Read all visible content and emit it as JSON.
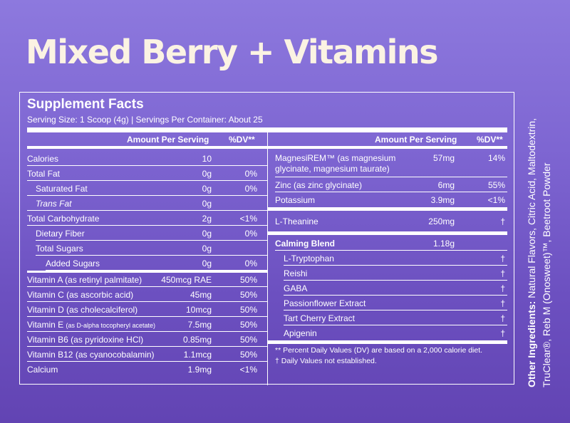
{
  "title": "Mixed Berry + Vitamins",
  "facts": {
    "heading": "Supplement Facts",
    "serving": "Serving Size: 1 Scoop (4g) | Servings Per Container: About 25",
    "col_amount": "Amount Per Serving",
    "col_dv": "%DV**"
  },
  "left_rows": [
    {
      "name": "Calories",
      "amt": "10",
      "dv": ""
    },
    {
      "name": "Total Fat",
      "amt": "0g",
      "dv": "0%"
    },
    {
      "name": "Saturated Fat",
      "amt": "0g",
      "dv": "0%"
    },
    {
      "name": "Trans Fat",
      "amt": "0g",
      "dv": ""
    },
    {
      "name": "Total Carbohydrate",
      "amt": "2g",
      "dv": "<1%"
    },
    {
      "name": "Dietary Fiber",
      "amt": "0g",
      "dv": "0%"
    },
    {
      "name": "Total Sugars",
      "amt": "0g",
      "dv": ""
    },
    {
      "name": "Added Sugars",
      "amt": "0g",
      "dv": "0%"
    },
    {
      "name": "Vitamin A (as retinyl palmitate)",
      "amt": "450mcg RAE",
      "dv": "50%"
    },
    {
      "name": "Vitamin C (as ascorbic acid)",
      "amt": "45mg",
      "dv": "50%"
    },
    {
      "name": "Vitamin D (as cholecalciferol)",
      "amt": "10mcg",
      "dv": "50%"
    },
    {
      "name": "Vitamin E",
      "sub": "(as D-alpha tocopheryl acetate)",
      "amt": "7.5mg",
      "dv": "50%"
    },
    {
      "name": "Vitamin B6 (as pyridoxine HCl)",
      "amt": "0.85mg",
      "dv": "50%"
    },
    {
      "name": "Vitamin B12 (as cyanocobalamin)",
      "amt": "1.1mcg",
      "dv": "50%"
    },
    {
      "name": "Calcium",
      "amt": "1.9mg",
      "dv": "<1%"
    }
  ],
  "right_rows": [
    {
      "name": "MagnesiREM™ (as magnesium",
      "name2": "glycinate, magnesium taurate)",
      "amt": "57mg",
      "dv": "14%"
    },
    {
      "name": "Zinc (as zinc glycinate)",
      "amt": "6mg",
      "dv": "55%"
    },
    {
      "name": "Potassium",
      "amt": "3.9mg",
      "dv": "<1%"
    },
    {
      "name": "L-Theanine",
      "amt": "250mg",
      "dv": "†"
    },
    {
      "name": "Calming Blend",
      "amt": "1.18g",
      "dv": ""
    },
    {
      "name": "L-Tryptophan",
      "amt": "",
      "dv": "†"
    },
    {
      "name": "Reishi",
      "amt": "",
      "dv": "†"
    },
    {
      "name": "GABA",
      "amt": "",
      "dv": "†"
    },
    {
      "name": "Passionflower Extract",
      "amt": "",
      "dv": "†"
    },
    {
      "name": "Tart Cherry Extract",
      "amt": "",
      "dv": "†"
    },
    {
      "name": "Apigenin",
      "amt": "",
      "dv": "†"
    }
  ],
  "footnotes": {
    "dv_note": "** Percent Daily Values (DV) are based on a 2,000 calorie diet.",
    "dagger_note": "† Daily Values not established."
  },
  "ingredients": {
    "label": "Other Ingredients:",
    "text": " Natural Flavors, Citric Acid, Maltodextrin, TruClear®, Reb M (Onosweet)™, Beetroot Powder"
  }
}
